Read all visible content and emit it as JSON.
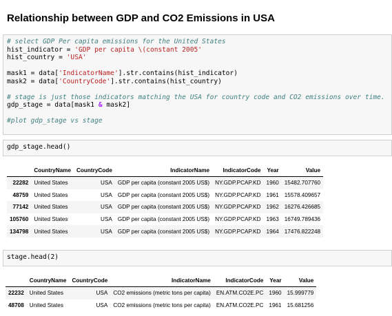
{
  "page_title": "Relationship between GDP and CO2 Emissions in USA",
  "cell1": {
    "lines": [
      {
        "type": "comment",
        "text": "# select GDP Per capita emissions for the United States"
      },
      {
        "type": "assign_str",
        "pre": "hist_indicator = ",
        "str": "'GDP per capita \\(constant 2005'",
        "post": ""
      },
      {
        "type": "assign_str",
        "pre": "hist_country = ",
        "str": "'USA'",
        "post": ""
      },
      {
        "type": "blank"
      },
      {
        "type": "assign_str",
        "pre": "mask1 = data[",
        "str": "'IndicatorName'",
        "post": "].str.contains(hist_indicator)"
      },
      {
        "type": "assign_str",
        "pre": "mask2 = data[",
        "str": "'CountryCode'",
        "post": "].str.contains(hist_country)"
      },
      {
        "type": "blank"
      },
      {
        "type": "comment",
        "text": "# stage is just those indicators matching the USA for country code and CO2 emissions over time."
      },
      {
        "type": "assign_op",
        "pre": "gdp_stage = data[mask1 ",
        "op": "&",
        "post": " mask2]"
      },
      {
        "type": "blank"
      },
      {
        "type": "comment",
        "text": "#plot gdp_stage vs stage"
      }
    ]
  },
  "cell2": {
    "code": "gdp_stage.head()"
  },
  "table1": {
    "columns": [
      "CountryName",
      "CountryCode",
      "IndicatorName",
      "IndicatorCode",
      "Year",
      "Value"
    ],
    "rows": [
      {
        "index": "22282",
        "cells": [
          "United States",
          "USA",
          "GDP per capita (constant 2005 US$)",
          "NY.GDP.PCAP.KD",
          "1960",
          "15482.707760"
        ]
      },
      {
        "index": "48759",
        "cells": [
          "United States",
          "USA",
          "GDP per capita (constant 2005 US$)",
          "NY.GDP.PCAP.KD",
          "1961",
          "15578.409657"
        ]
      },
      {
        "index": "77142",
        "cells": [
          "United States",
          "USA",
          "GDP per capita (constant 2005 US$)",
          "NY.GDP.PCAP.KD",
          "1962",
          "16276.426685"
        ]
      },
      {
        "index": "105760",
        "cells": [
          "United States",
          "USA",
          "GDP per capita (constant 2005 US$)",
          "NY.GDP.PCAP.KD",
          "1963",
          "16749.789436"
        ]
      },
      {
        "index": "134798",
        "cells": [
          "United States",
          "USA",
          "GDP per capita (constant 2005 US$)",
          "NY.GDP.PCAP.KD",
          "1964",
          "17476.822248"
        ]
      }
    ]
  },
  "cell3": {
    "code": "stage.head(2)"
  },
  "table2": {
    "columns": [
      "CountryName",
      "CountryCode",
      "IndicatorName",
      "IndicatorCode",
      "Year",
      "Value"
    ],
    "rows": [
      {
        "index": "22232",
        "cells": [
          "United States",
          "USA",
          "CO2 emissions (metric tons per capita)",
          "EN.ATM.CO2E.PC",
          "1960",
          "15.999779"
        ]
      },
      {
        "index": "48708",
        "cells": [
          "United States",
          "USA",
          "CO2 emissions (metric tons per capita)",
          "EN.ATM.CO2E.PC",
          "1961",
          "15.681256"
        ]
      }
    ]
  }
}
